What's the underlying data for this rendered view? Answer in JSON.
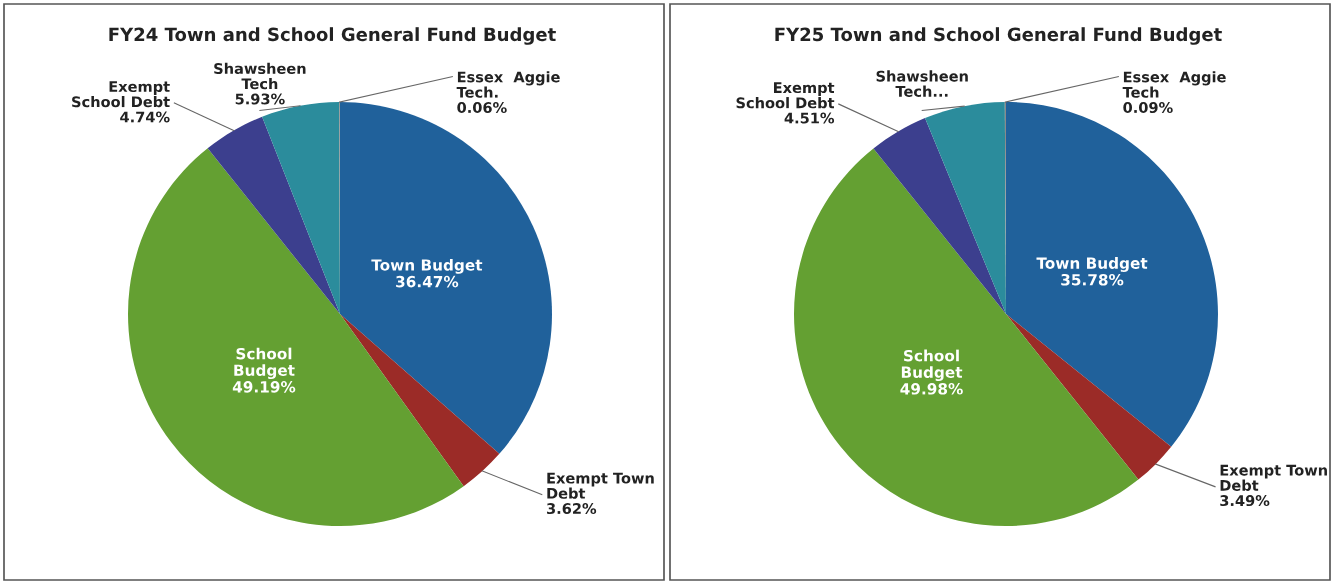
{
  "chart_data": [
    {
      "type": "pie",
      "title": "FY24 Town and School General Fund Budget",
      "categories": [
        "Town Budget",
        "Exempt Town\nDebt",
        "School\nBudget",
        "Exempt\nSchool Debt",
        "Shawsheen\nTech",
        "Essex  Aggie\nTech."
      ],
      "values": [
        36.47,
        3.62,
        49.19,
        4.74,
        5.93,
        0.06
      ],
      "value_labels": [
        "36.47%",
        "3.62%",
        "49.19%",
        "4.74%",
        "5.93%",
        "0.06%"
      ],
      "colors": [
        "#20619b",
        "#9b2b27",
        "#64a032",
        "#3c3f8e",
        "#2b8c9c",
        "#8a8a8a"
      ]
    },
    {
      "type": "pie",
      "title": "FY25 Town and School General Fund Budget",
      "categories": [
        "Town Budget",
        "Exempt Town\nDebt",
        "School\nBudget",
        "Exempt\nSchool Debt",
        "Shawsheen\nTech...",
        "Essex  Aggie\nTech"
      ],
      "values": [
        35.78,
        3.49,
        49.98,
        4.51,
        6.15,
        0.09
      ],
      "value_labels": [
        "35.78%",
        "3.49%",
        "49.98%",
        "4.51%",
        null,
        "0.09%"
      ],
      "colors": [
        "#20619b",
        "#9b2b27",
        "#64a032",
        "#3c3f8e",
        "#2b8c9c",
        "#8a8a8a"
      ]
    }
  ]
}
